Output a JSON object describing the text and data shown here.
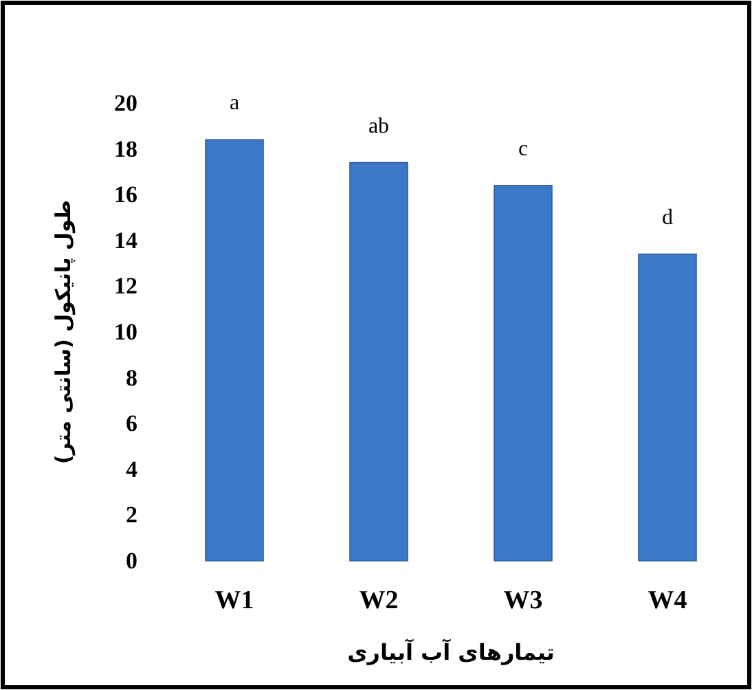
{
  "chart_data": {
    "type": "bar",
    "categories": [
      "W1",
      "W2",
      "W3",
      "W4"
    ],
    "values": [
      18.4,
      17.4,
      16.4,
      13.4
    ],
    "color": "#3b78c9",
    "ylim": [
      0,
      20
    ],
    "yticks": [
      0,
      2,
      4,
      6,
      8,
      10,
      12,
      14,
      16,
      18,
      20
    ],
    "xlabel": "تیمارهای آب آبیاری",
    "ylabel": "طول پانیکول (سانتی متر)",
    "annotations": [
      {
        "text": "a",
        "x": "W1",
        "y": 18.4
      },
      {
        "text": "ab",
        "x": "W2",
        "y": 17.4
      },
      {
        "text": "c",
        "x": "W3",
        "y": 16.4
      },
      {
        "text": "d",
        "x": "W4",
        "y": 13.4
      }
    ]
  }
}
